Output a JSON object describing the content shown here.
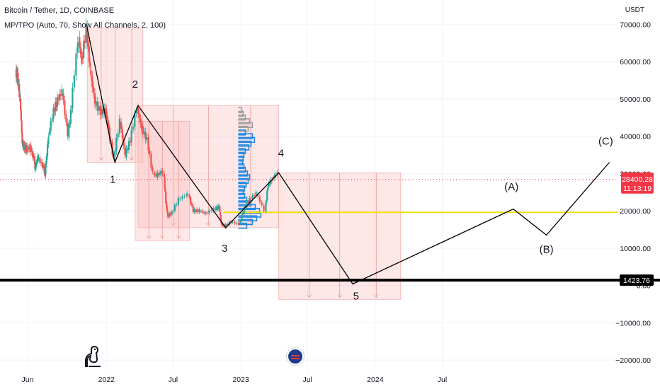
{
  "header": {
    "symbol_line": "Bitcoin / Tether, 1D, COINBASE",
    "indicator_line": "MP/TPO (Auto, 70, Show All Channels, 2, 100)"
  },
  "axis_unit": "USDT",
  "colors": {
    "candle_up": "#26a69a",
    "candle_down": "#ef5350",
    "box_fill": "#f8bbbb",
    "support_line": "#f5e000",
    "wave_line": "#000000",
    "profile_blue": "#1e88e5",
    "profile_gray": "#9e9e9e",
    "price_badge": "#f23645"
  },
  "icons": [
    "tradingview-logo-icon",
    "us-flag-event-icon"
  ],
  "chart_data": {
    "type": "line",
    "y_axis": {
      "ticks": [
        70000,
        60000,
        50000,
        40000,
        30000,
        20000,
        10000,
        0,
        -10000,
        -20000
      ],
      "tick_labels": [
        "70000.00",
        "60000.00",
        "50000.00",
        "40000.00",
        "30000.00",
        "20000.00",
        "10000.00",
        "0.00",
        "−10000.00",
        "−20000.00"
      ],
      "range": [
        -23000,
        76500
      ]
    },
    "x_axis": {
      "ticks": [
        "2021-06-01",
        "2022-01-01",
        "2022-07-01",
        "2023-01-01",
        "2023-07-01",
        "2024-01-01",
        "2024-07-01"
      ],
      "tick_labels": [
        "Jun",
        "2022",
        "Jul",
        "2023",
        "Jul",
        "2024",
        "Jul"
      ],
      "range": [
        "2021-03-18",
        "2025-10-20"
      ]
    },
    "price_labels": [
      {
        "value": 28400.28,
        "text": "28400.28",
        "time": "11:13:19"
      },
      {
        "value": 1423.76,
        "text": "1423.76"
      }
    ],
    "horizontal_lines": [
      {
        "name": "current-price",
        "value": 28400.28,
        "style": "dotted",
        "color": "#f23645"
      },
      {
        "name": "support",
        "value": 19600,
        "style": "solid",
        "color": "#f5e000"
      },
      {
        "name": "target",
        "value": 1423.76,
        "style": "solid",
        "color": "#000000"
      }
    ],
    "wave_path": [
      {
        "date": "2021-11-10",
        "y": 69000
      },
      {
        "date": "2022-01-24",
        "y": 33000
      },
      {
        "date": "2022-03-28",
        "y": 48200
      },
      {
        "date": "2022-11-21",
        "y": 15500
      },
      {
        "date": "2023-04-14",
        "y": 30200
      },
      {
        "date": "2023-11-01",
        "y": 400
      },
      {
        "date": "2025-01-10",
        "y": 20500
      },
      {
        "date": "2025-04-10",
        "y": 13500
      },
      {
        "date": "2025-09-28",
        "y": 33000
      }
    ],
    "wave_labels": [
      {
        "text": "1",
        "date": "2022-01-18",
        "y": 27500
      },
      {
        "text": "2",
        "date": "2022-03-20",
        "y": 53000
      },
      {
        "text": "3",
        "date": "2022-11-18",
        "y": 9000
      },
      {
        "text": "4",
        "date": "2023-04-20",
        "y": 34500
      },
      {
        "text": "5",
        "date": "2023-11-10",
        "y": -3800
      },
      {
        "text": "(A)",
        "date": "2025-01-05",
        "y": 25500
      },
      {
        "text": "(B)",
        "date": "2025-04-10",
        "y": 8700
      },
      {
        "text": "(C)",
        "date": "2025-09-18",
        "y": 37700
      }
    ],
    "range_boxes": [
      {
        "from": "2021-11-10",
        "to": "2022-04-10",
        "top": 69000,
        "bottom": 33000
      },
      {
        "from": "2022-03-28",
        "to": "2023-04-14",
        "top": 48200,
        "bottom": 15500
      },
      {
        "from": "2022-03-20",
        "to": "2022-08-15",
        "top": 44000,
        "bottom": 12000
      },
      {
        "from": "2023-04-14",
        "to": "2024-03-10",
        "top": 30200,
        "bottom": -3800
      }
    ],
    "price_series": [
      {
        "date": "2021-05-01",
        "y": 57000
      },
      {
        "date": "2021-05-06",
        "y": 56000
      },
      {
        "date": "2021-05-13",
        "y": 50000
      },
      {
        "date": "2021-05-19",
        "y": 38000
      },
      {
        "date": "2021-05-25",
        "y": 37000
      },
      {
        "date": "2021-06-01",
        "y": 36500
      },
      {
        "date": "2021-06-10",
        "y": 37000
      },
      {
        "date": "2021-06-20",
        "y": 34000
      },
      {
        "date": "2021-06-22",
        "y": 31000
      },
      {
        "date": "2021-07-01",
        "y": 34500
      },
      {
        "date": "2021-07-15",
        "y": 32000
      },
      {
        "date": "2021-07-20",
        "y": 29800
      },
      {
        "date": "2021-07-30",
        "y": 40000
      },
      {
        "date": "2021-08-14",
        "y": 47000
      },
      {
        "date": "2021-08-23",
        "y": 49500
      },
      {
        "date": "2021-09-06",
        "y": 52000
      },
      {
        "date": "2021-09-21",
        "y": 40500
      },
      {
        "date": "2021-10-01",
        "y": 48000
      },
      {
        "date": "2021-10-20",
        "y": 66000
      },
      {
        "date": "2021-10-28",
        "y": 60000
      },
      {
        "date": "2021-11-10",
        "y": 68500
      },
      {
        "date": "2021-11-20",
        "y": 58000
      },
      {
        "date": "2021-12-04",
        "y": 49000
      },
      {
        "date": "2021-12-20",
        "y": 46500
      },
      {
        "date": "2022-01-01",
        "y": 47000
      },
      {
        "date": "2022-01-10",
        "y": 41500
      },
      {
        "date": "2022-01-24",
        "y": 34000
      },
      {
        "date": "2022-02-10",
        "y": 44000
      },
      {
        "date": "2022-02-24",
        "y": 35000
      },
      {
        "date": "2022-03-10",
        "y": 39000
      },
      {
        "date": "2022-03-28",
        "y": 47500
      },
      {
        "date": "2022-04-10",
        "y": 42000
      },
      {
        "date": "2022-04-25",
        "y": 39000
      },
      {
        "date": "2022-05-10",
        "y": 30000
      },
      {
        "date": "2022-05-20",
        "y": 29500
      },
      {
        "date": "2022-06-07",
        "y": 30500
      },
      {
        "date": "2022-06-13",
        "y": 22500
      },
      {
        "date": "2022-06-18",
        "y": 18500
      },
      {
        "date": "2022-07-01",
        "y": 19500
      },
      {
        "date": "2022-07-20",
        "y": 23000
      },
      {
        "date": "2022-08-14",
        "y": 24500
      },
      {
        "date": "2022-08-28",
        "y": 20000
      },
      {
        "date": "2022-09-15",
        "y": 20000
      },
      {
        "date": "2022-10-01",
        "y": 19300
      },
      {
        "date": "2022-10-25",
        "y": 20500
      },
      {
        "date": "2022-11-05",
        "y": 21000
      },
      {
        "date": "2022-11-10",
        "y": 16500
      },
      {
        "date": "2022-11-21",
        "y": 15800
      },
      {
        "date": "2022-12-10",
        "y": 17100
      },
      {
        "date": "2022-12-31",
        "y": 16500
      },
      {
        "date": "2023-01-14",
        "y": 20800
      },
      {
        "date": "2023-01-28",
        "y": 23000
      },
      {
        "date": "2023-02-16",
        "y": 24800
      },
      {
        "date": "2023-03-10",
        "y": 20200
      },
      {
        "date": "2023-03-17",
        "y": 26500
      },
      {
        "date": "2023-03-30",
        "y": 28500
      },
      {
        "date": "2023-04-14",
        "y": 30200
      }
    ],
    "volume_profile": {
      "bars": [
        {
          "y": 47000,
          "len": 5,
          "color": "gray"
        },
        {
          "y": 46000,
          "len": 7,
          "color": "gray"
        },
        {
          "y": 45000,
          "len": 10,
          "color": "gray"
        },
        {
          "y": 44000,
          "len": 16,
          "color": "gray"
        },
        {
          "y": 43000,
          "len": 20,
          "color": "gray"
        },
        {
          "y": 42000,
          "len": 14,
          "color": "gray"
        },
        {
          "y": 41000,
          "len": 10,
          "color": "blue"
        },
        {
          "y": 40000,
          "len": 20,
          "color": "blue"
        },
        {
          "y": 39000,
          "len": 23,
          "color": "blue"
        },
        {
          "y": 38000,
          "len": 18,
          "color": "blue"
        },
        {
          "y": 37000,
          "len": 15,
          "color": "blue"
        },
        {
          "y": 36000,
          "len": 10,
          "color": "blue"
        },
        {
          "y": 35000,
          "len": 8,
          "color": "blue"
        },
        {
          "y": 34000,
          "len": 7,
          "color": "blue"
        },
        {
          "y": 33000,
          "len": 6,
          "color": "blue"
        },
        {
          "y": 32000,
          "len": 8,
          "color": "blue"
        },
        {
          "y": 31000,
          "len": 10,
          "color": "blue"
        },
        {
          "y": 30000,
          "len": 13,
          "color": "blue"
        },
        {
          "y": 29000,
          "len": 16,
          "color": "blue"
        },
        {
          "y": 28000,
          "len": 14,
          "color": "blue"
        },
        {
          "y": 27000,
          "len": 11,
          "color": "blue"
        },
        {
          "y": 26000,
          "len": 9,
          "color": "blue"
        },
        {
          "y": 25000,
          "len": 7,
          "color": "blue"
        },
        {
          "y": 24000,
          "len": 9,
          "color": "blue"
        },
        {
          "y": 23000,
          "len": 12,
          "color": "blue"
        },
        {
          "y": 22000,
          "len": 18,
          "color": "blue"
        },
        {
          "y": 21000,
          "len": 24,
          "color": "blue"
        },
        {
          "y": 20000,
          "len": 30,
          "color": "blue"
        },
        {
          "y": 19000,
          "len": 32,
          "color": "blue"
        },
        {
          "y": 18000,
          "len": 26,
          "color": "blue"
        },
        {
          "y": 17000,
          "len": 20,
          "color": "blue"
        },
        {
          "y": 16000,
          "len": 12,
          "color": "blue"
        }
      ]
    },
    "grid": true
  }
}
